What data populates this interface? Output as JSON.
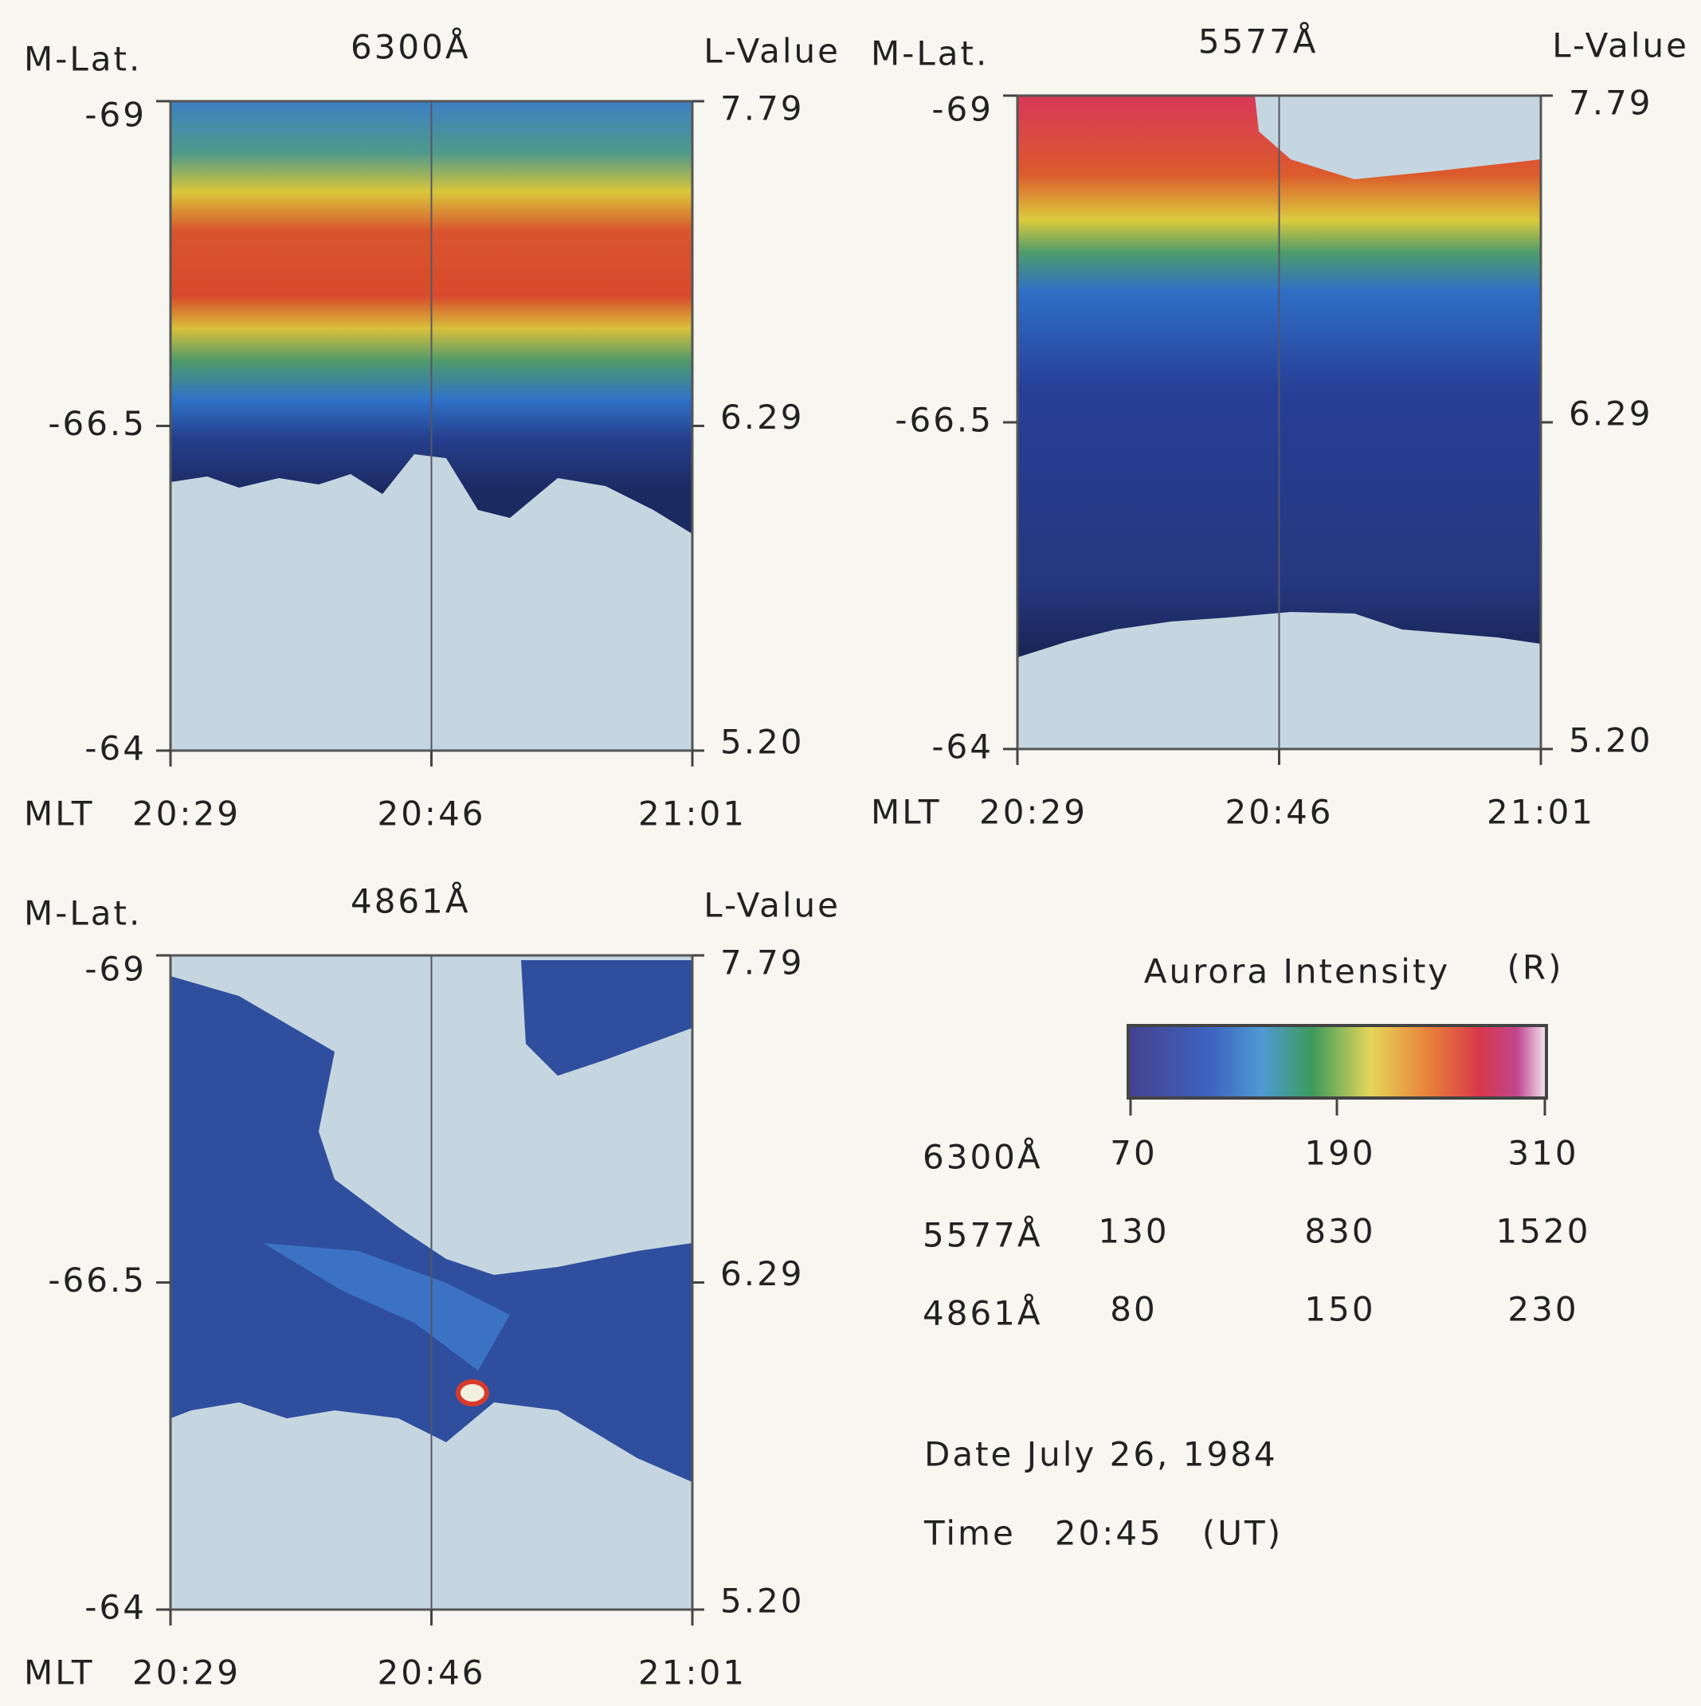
{
  "panels": [
    {
      "left_label": "M-Lat.",
      "title": "6300Å",
      "right_label": "L-Value",
      "left_ticks": [
        "-69",
        "-66.5",
        "-64"
      ],
      "right_ticks": [
        "7.79",
        "6.29",
        "5.20"
      ],
      "x_label": "MLT",
      "x_ticks": [
        "20:29",
        "20:46",
        "21:01"
      ]
    },
    {
      "left_label": "M-Lat.",
      "title": "5577Å",
      "right_label": "L-Value",
      "left_ticks": [
        "-69",
        "-66.5",
        "-64"
      ],
      "right_ticks": [
        "7.79",
        "6.29",
        "5.20"
      ],
      "x_label": "MLT",
      "x_ticks": [
        "20:29",
        "20:46",
        "21:01"
      ]
    },
    {
      "left_label": "M-Lat.",
      "title": "4861Å",
      "right_label": "L-Value",
      "left_ticks": [
        "-69",
        "-66.5",
        "-64"
      ],
      "right_ticks": [
        "7.79",
        "6.29",
        "5.20"
      ],
      "x_label": "MLT",
      "x_ticks": [
        "20:29",
        "20:46",
        "21:01"
      ]
    }
  ],
  "legend": {
    "title": "Aurora Intensity",
    "unit": "(R)",
    "rows": [
      {
        "line": "6300Å",
        "values": [
          "70",
          "190",
          "310"
        ]
      },
      {
        "line": "5577Å",
        "values": [
          "130",
          "830",
          "1520"
        ]
      },
      {
        "line": "4861Å",
        "values": [
          "80",
          "150",
          "230"
        ]
      }
    ]
  },
  "date": "Date July 26, 1984",
  "time": "Time   20:45   (UT)"
}
